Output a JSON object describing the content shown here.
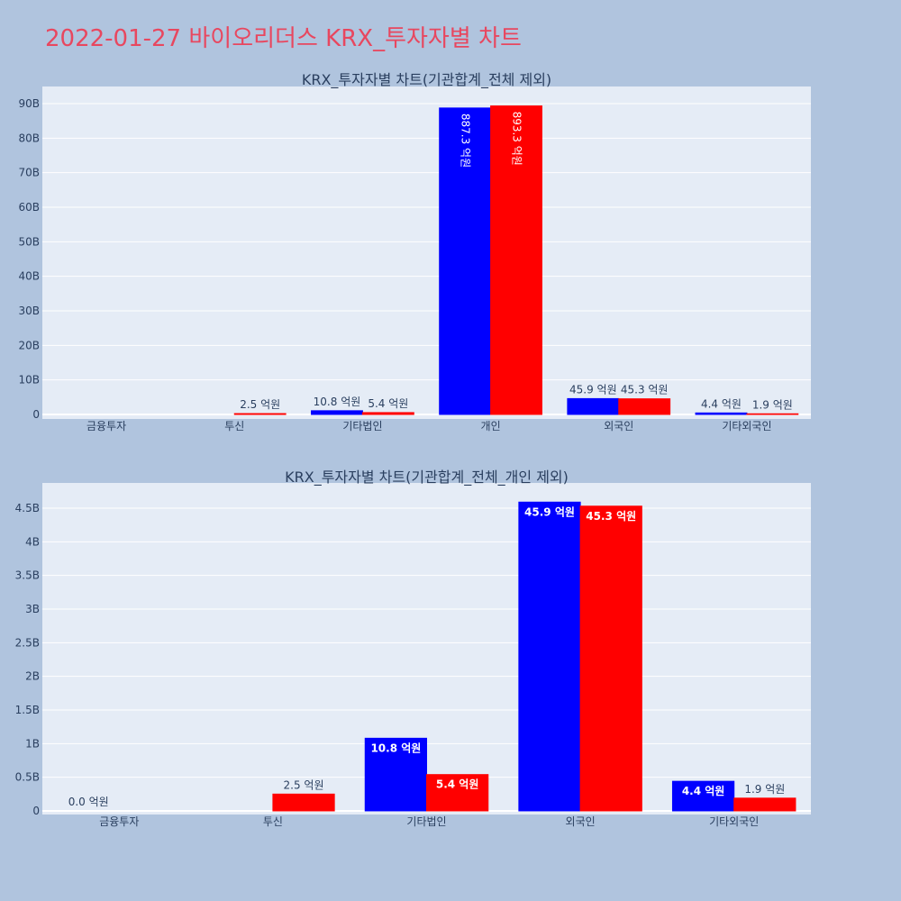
{
  "page": {
    "title": "2022-01-27 바이오리더스 KRX_투자자별 차트"
  },
  "theme": {
    "background": "#b0c4de",
    "plot_bg": "#e5ecf6",
    "title_color": "#e8475f",
    "series_a": "#0000ff",
    "series_b": "#ff0000",
    "text": "#2a3f5f"
  },
  "chart_data": [
    {
      "type": "bar",
      "title": "KRX_투자자별 차트(기관합계_전체 제외)",
      "categories": [
        "금융투자",
        "투신",
        "기타법인",
        "개인",
        "외국인",
        "기타외국인"
      ],
      "ylim": [
        0,
        90
      ],
      "yticks": [
        0,
        10,
        20,
        30,
        40,
        50,
        60,
        70,
        80,
        90
      ],
      "yticklabels": [
        "0",
        "10B",
        "20B",
        "30B",
        "40B",
        "50B",
        "60B",
        "70B",
        "80B",
        "90B"
      ],
      "grid": true,
      "series": [
        {
          "values": [
            0,
            0,
            1.08,
            88.73,
            4.59,
            0.44
          ],
          "labels": [
            "",
            "",
            "10.8 억원",
            "887.3 억원",
            "45.9 억원",
            "4.4 억원"
          ]
        },
        {
          "values": [
            0,
            0.25,
            0.54,
            89.33,
            4.53,
            0.19
          ],
          "labels": [
            "",
            "2.5 억원",
            "5.4 억원",
            "893.3 억원",
            "45.3 억원",
            "1.9 억원"
          ]
        }
      ]
    },
    {
      "type": "bar",
      "title": "KRX_투자자별 차트(기관합계_전체_개인 제외)",
      "categories": [
        "금융투자",
        "투신",
        "기타법인",
        "외국인",
        "기타외국인"
      ],
      "ylim": [
        0,
        4.8
      ],
      "yticks": [
        0,
        0.5,
        1,
        1.5,
        2,
        2.5,
        3,
        3.5,
        4,
        4.5
      ],
      "yticklabels": [
        "0",
        "0.5B",
        "1B",
        "1.5B",
        "2B",
        "2.5B",
        "3B",
        "3.5B",
        "4B",
        "4.5B"
      ],
      "grid": true,
      "series": [
        {
          "values": [
            0,
            0,
            1.08,
            4.59,
            0.44
          ],
          "labels": [
            "0.0 억원",
            "",
            "10.8 억원",
            "45.9 억원",
            "4.4 억원"
          ]
        },
        {
          "values": [
            0,
            0.25,
            0.54,
            4.53,
            0.19
          ],
          "labels": [
            "",
            "2.5 억원",
            "5.4 억원",
            "45.3 억원",
            "1.9 억원"
          ]
        }
      ]
    }
  ]
}
